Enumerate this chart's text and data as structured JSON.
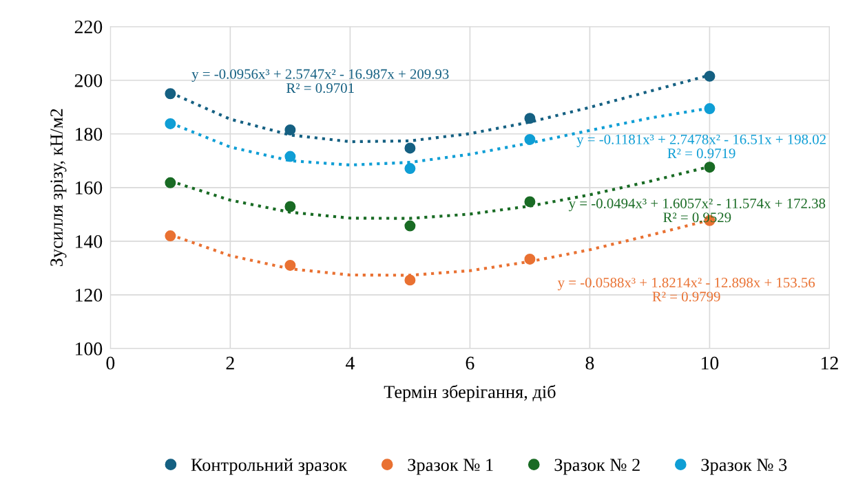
{
  "chart_data": {
    "type": "scatter",
    "xlabel": "Термін зберігання, діб",
    "ylabel": "Зусилля зрізу, кН/м2",
    "xlim": [
      0,
      12
    ],
    "xticks": [
      0,
      2,
      4,
      6,
      8,
      10,
      12
    ],
    "ylim": [
      100,
      220
    ],
    "yticks": [
      100,
      120,
      140,
      160,
      180,
      200,
      220
    ],
    "grid": true,
    "legend": "bottom",
    "marker": "circle",
    "x": [
      1,
      3,
      5,
      7,
      10
    ],
    "series": [
      {
        "name": "Контрольний зразок",
        "color": "#156082",
        "values": [
          195.0,
          181.5,
          174.7,
          185.8,
          201.5
        ]
      },
      {
        "name": "Зразок № 1",
        "color": "#e97132",
        "values": [
          142.0,
          131.0,
          125.5,
          133.3,
          147.7
        ]
      },
      {
        "name": "Зразок № 2",
        "color": "#196b24",
        "values": [
          161.8,
          152.9,
          145.7,
          154.7,
          167.6
        ]
      },
      {
        "name": "Зразок № 3",
        "color": "#0f9ed5",
        "values": [
          183.8,
          171.6,
          167.1,
          177.9,
          189.4
        ]
      },
      {
        "type": "line",
        "line_style": "dotted",
        "marker": "none",
        "color": "#156082",
        "x": [
          1,
          2,
          3,
          4,
          5,
          6,
          7,
          8,
          9,
          10
        ],
        "values": [
          195.4,
          185.5,
          179.6,
          177.1,
          177.4,
          180.1,
          184.4,
          189.9,
          195.9,
          201.9
        ]
      },
      {
        "type": "line",
        "line_style": "dotted",
        "marker": "none",
        "color": "#e97132",
        "x": [
          1,
          2,
          3,
          4,
          5,
          6,
          7,
          8,
          9,
          10
        ],
        "values": [
          142.4,
          134.6,
          129.7,
          127.4,
          127.3,
          129.0,
          132.4,
          136.8,
          142.2,
          147.9
        ]
      },
      {
        "type": "line",
        "line_style": "dotted",
        "marker": "none",
        "color": "#196b24",
        "x": [
          1,
          2,
          3,
          4,
          5,
          6,
          7,
          8,
          9,
          10
        ],
        "values": [
          162.4,
          155.3,
          150.8,
          148.6,
          148.5,
          150.1,
          153.1,
          157.3,
          162.3,
          167.8
        ]
      },
      {
        "type": "line",
        "line_style": "dotted",
        "marker": "none",
        "color": "#0f9ed5",
        "x": [
          1,
          2,
          3,
          4,
          5,
          6,
          7,
          8,
          9,
          10
        ],
        "values": [
          184.1,
          175.1,
          170.0,
          168.4,
          169.4,
          172.4,
          176.6,
          181.3,
          185.9,
          189.6
        ]
      }
    ],
    "annotations": [
      "y = -0.0956x³ + 2.5747x² - 16.987x + 209.93\nR² = 0.9701",
      "y = -0.1181x³ + 2.7478x² - 16.51x + 198.02\nR² = 0.9719",
      "y = -0.0494x³ + 1.6057x² - 11.574x + 172.38\nR² = 0.9529",
      "y = -0.0588x³ + 1.8214x² - 12.898x + 153.56\nR² = 0.9799"
    ]
  }
}
